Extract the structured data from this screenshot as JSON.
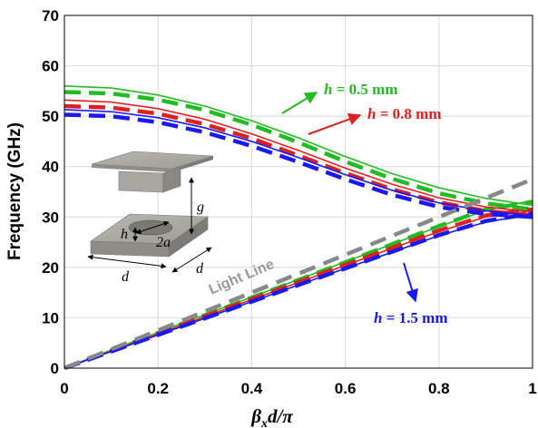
{
  "chart_data": {
    "type": "line",
    "xlabel": "β_x d/π",
    "xlabel_parts": {
      "beta": "β",
      "sub": "x",
      "rest": "d/π"
    },
    "ylabel": "Frequency (GHz)",
    "xlim": [
      0,
      1
    ],
    "ylim": [
      0,
      70
    ],
    "xticks": [
      "0",
      "0.2",
      "0.4",
      "0.6",
      "0.8",
      "1"
    ],
    "yticks": [
      "0",
      "10",
      "20",
      "30",
      "40",
      "50",
      "60",
      "70"
    ],
    "grid": true,
    "series": [
      {
        "group": "h = 0.5 mm",
        "mode": "upper",
        "style": "solid",
        "color": "#22bb22",
        "x": [
          0,
          0.1,
          0.2,
          0.3,
          0.4,
          0.5,
          0.6,
          0.7,
          0.8,
          0.9,
          1.0
        ],
        "y": [
          56.0,
          55.6,
          54.2,
          52.0,
          49.1,
          45.7,
          42.0,
          38.6,
          35.8,
          33.7,
          32.3
        ]
      },
      {
        "group": "h = 0.5 mm",
        "mode": "upper",
        "style": "dashed",
        "color": "#22bb22",
        "x": [
          0,
          0.1,
          0.2,
          0.3,
          0.4,
          0.5,
          0.6,
          0.7,
          0.8,
          0.9,
          1.0
        ],
        "y": [
          54.8,
          54.5,
          53.3,
          51.2,
          48.3,
          44.8,
          41.0,
          37.6,
          34.7,
          32.7,
          31.5
        ]
      },
      {
        "group": "h = 0.5 mm",
        "mode": "lower",
        "style": "solid",
        "color": "#22bb22",
        "x": [
          0,
          0.1,
          0.2,
          0.3,
          0.4,
          0.5,
          0.6,
          0.7,
          0.8,
          0.9,
          1.0
        ],
        "y": [
          0,
          3.6,
          7.1,
          10.6,
          14.1,
          17.6,
          21.1,
          24.6,
          28.1,
          31.3,
          33.3
        ]
      },
      {
        "group": "h = 0.5 mm",
        "mode": "lower",
        "style": "dashed",
        "color": "#22bb22",
        "x": [
          0,
          0.1,
          0.2,
          0.3,
          0.4,
          0.5,
          0.6,
          0.7,
          0.8,
          0.9,
          1.0
        ],
        "y": [
          0,
          3.5,
          7.0,
          10.5,
          14.0,
          17.5,
          21.0,
          24.6,
          28.2,
          31.5,
          33.0
        ]
      },
      {
        "group": "h = 0.8 mm",
        "mode": "upper",
        "style": "solid",
        "color": "#e02020",
        "x": [
          0,
          0.1,
          0.2,
          0.3,
          0.4,
          0.5,
          0.6,
          0.7,
          0.8,
          0.9,
          1.0
        ],
        "y": [
          53.2,
          52.8,
          51.5,
          49.4,
          46.5,
          43.2,
          39.7,
          36.5,
          33.8,
          32.0,
          31.0
        ]
      },
      {
        "group": "h = 0.8 mm",
        "mode": "upper",
        "style": "dashed",
        "color": "#e02020",
        "x": [
          0,
          0.1,
          0.2,
          0.3,
          0.4,
          0.5,
          0.6,
          0.7,
          0.8,
          0.9,
          1.0
        ],
        "y": [
          52.0,
          51.7,
          50.5,
          48.4,
          45.6,
          42.2,
          38.7,
          35.5,
          32.9,
          31.2,
          30.3
        ]
      },
      {
        "group": "h = 0.8 mm",
        "mode": "lower",
        "style": "solid",
        "color": "#e02020",
        "x": [
          0,
          0.1,
          0.2,
          0.3,
          0.4,
          0.5,
          0.6,
          0.7,
          0.8,
          0.9,
          1.0
        ],
        "y": [
          0,
          3.4,
          6.8,
          10.2,
          13.6,
          17.0,
          20.4,
          23.8,
          27.1,
          30.0,
          31.2
        ]
      },
      {
        "group": "h = 0.8 mm",
        "mode": "lower",
        "style": "dashed",
        "color": "#e02020",
        "x": [
          0,
          0.1,
          0.2,
          0.3,
          0.4,
          0.5,
          0.6,
          0.7,
          0.8,
          0.9,
          1.0
        ],
        "y": [
          0,
          3.4,
          6.8,
          10.3,
          13.7,
          17.1,
          20.5,
          23.9,
          27.3,
          30.3,
          31.5
        ]
      },
      {
        "group": "h = 1.5 mm",
        "mode": "upper",
        "style": "solid",
        "color": "#1a1aee",
        "x": [
          0,
          0.1,
          0.2,
          0.3,
          0.4,
          0.5,
          0.6,
          0.7,
          0.8,
          0.9,
          1.0
        ],
        "y": [
          51.3,
          50.9,
          49.7,
          47.7,
          45.0,
          41.8,
          38.4,
          35.3,
          32.8,
          31.2,
          30.3
        ]
      },
      {
        "group": "h = 1.5 mm",
        "mode": "upper",
        "style": "dashed",
        "color": "#1a1aee",
        "x": [
          0,
          0.1,
          0.2,
          0.3,
          0.4,
          0.5,
          0.6,
          0.7,
          0.8,
          0.9,
          1.0
        ],
        "y": [
          50.3,
          50.0,
          48.8,
          46.8,
          44.1,
          40.9,
          37.5,
          34.4,
          32.0,
          30.6,
          30.0
        ]
      },
      {
        "group": "h = 1.5 mm",
        "mode": "lower",
        "style": "solid",
        "color": "#1a1aee",
        "x": [
          0,
          0.1,
          0.2,
          0.3,
          0.4,
          0.5,
          0.6,
          0.7,
          0.8,
          0.9,
          1.0
        ],
        "y": [
          0,
          3.3,
          6.6,
          9.9,
          13.2,
          16.5,
          19.8,
          23.0,
          26.3,
          29.0,
          30.5
        ]
      },
      {
        "group": "h = 1.5 mm",
        "mode": "lower",
        "style": "dashed",
        "color": "#1a1aee",
        "x": [
          0,
          0.1,
          0.2,
          0.3,
          0.4,
          0.5,
          0.6,
          0.7,
          0.8,
          0.9,
          1.0
        ],
        "y": [
          0,
          3.3,
          6.6,
          9.9,
          13.2,
          16.5,
          19.8,
          23.1,
          26.4,
          29.2,
          30.7
        ]
      }
    ],
    "light_line": {
      "label": "Light Line",
      "color": "#888888",
      "x": [
        0,
        1.0
      ],
      "y": [
        0,
        37.5
      ]
    },
    "annotations": [
      {
        "label": "h = 0.5 mm",
        "var": "h",
        "rest": " = 0.5 mm",
        "color": "#22bb22"
      },
      {
        "label": "h = 0.8 mm",
        "var": "h",
        "rest": " = 0.8 mm",
        "color": "#e02020"
      },
      {
        "label": "h = 1.5 mm",
        "var": "h",
        "rest": " = 1.5 mm",
        "color": "#1a1aee"
      }
    ],
    "inset": {
      "labels": {
        "g": "g",
        "h": "h",
        "a": "2a",
        "d1": "d",
        "d2": "d"
      }
    }
  }
}
